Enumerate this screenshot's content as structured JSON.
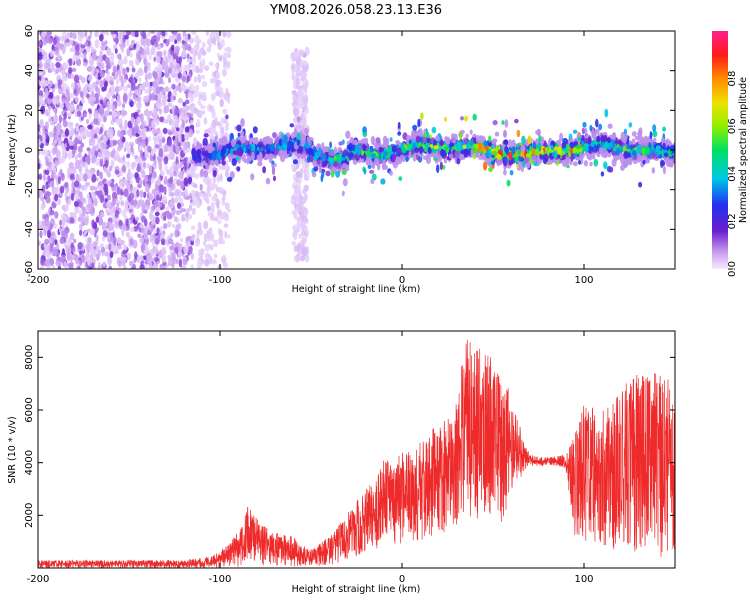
{
  "title": "YM08.2026.058.23.13.E36",
  "chart_data": [
    {
      "type": "heatmap",
      "xlabel": "Height of straight line (km)",
      "ylabel": "Frequency (Hz)",
      "xlim": [
        -200,
        150
      ],
      "ylim": [
        -60,
        60
      ],
      "xticks": [
        -200,
        -100,
        0,
        100
      ],
      "yticks": [
        -60,
        -40,
        -20,
        0,
        20,
        40,
        60
      ],
      "colorbar": {
        "label": "Normalized spectral amplitude",
        "range": [
          0,
          1
        ],
        "ticks": [
          0.0,
          0.2,
          0.4,
          0.6,
          0.8
        ],
        "tick_labels": [
          "0.0",
          "0.2",
          "0.4",
          "0.6",
          "0.8"
        ],
        "colormap": [
          "#f2e6ff",
          "#c79cf0",
          "#6a1fd0",
          "#2030f0",
          "#00c8e8",
          "#00e060",
          "#90f000",
          "#f0e000",
          "#ff8c00",
          "#ff1a1a",
          "#ff2090"
        ]
      },
      "regions": [
        {
          "description": "broadband scatter",
          "x_range": [
            -200,
            -115
          ],
          "freq_range": [
            -60,
            60
          ],
          "amplitude_range": [
            0.02,
            0.2
          ]
        },
        {
          "description": "sparse scatter",
          "x_range": [
            -115,
            -95
          ],
          "freq_range": [
            -60,
            60
          ],
          "amplitude_range": [
            0.02,
            0.06
          ]
        },
        {
          "description": "isolated column",
          "x_range": [
            -60,
            -52
          ],
          "freq_range": [
            -55,
            50
          ],
          "amplitude_range": [
            0.02,
            0.06
          ]
        },
        {
          "description": "narrowband ridge near 0 Hz",
          "x_range": [
            -115,
            150
          ],
          "freq_range": [
            -6,
            6
          ],
          "amplitude_range": [
            0.2,
            1.0
          ]
        }
      ]
    },
    {
      "type": "line",
      "xlabel": "Height of straight line (km)",
      "ylabel": "SNR (10 * v/v)",
      "xlim": [
        -200,
        150
      ],
      "ylim": [
        0,
        9000
      ],
      "xticks": [
        -200,
        -100,
        0,
        100
      ],
      "yticks": [
        2000,
        4000,
        6000,
        8000
      ],
      "color": "#ee2a2a",
      "envelope": {
        "x": [
          -200,
          -120,
          -105,
          -95,
          -88,
          -84,
          -80,
          -72,
          -60,
          -50,
          -38,
          -30,
          -20,
          -10,
          0,
          10,
          20,
          30,
          35,
          45,
          55,
          60,
          70,
          80,
          90,
          95,
          100,
          110,
          120,
          130,
          140,
          150
        ],
        "upper": [
          300,
          300,
          450,
          900,
          1600,
          2600,
          1900,
          1400,
          1200,
          700,
          1300,
          2100,
          3000,
          4200,
          4400,
          4800,
          5500,
          6500,
          8800,
          8300,
          7600,
          6500,
          4300,
          4200,
          4300,
          5200,
          6200,
          6000,
          6800,
          7500,
          7500,
          7000
        ],
        "lower": [
          0,
          0,
          0,
          0,
          50,
          100,
          100,
          100,
          50,
          50,
          100,
          300,
          600,
          800,
          900,
          1000,
          1200,
          1500,
          2000,
          1800,
          1500,
          3000,
          3800,
          3900,
          3800,
          1200,
          800,
          700,
          600,
          500,
          400,
          300
        ]
      }
    }
  ]
}
